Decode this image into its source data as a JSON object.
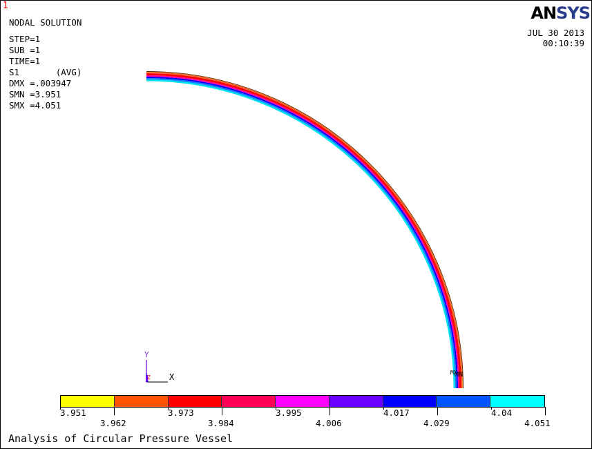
{
  "window_number": "1",
  "header": {
    "title": "NODAL SOLUTION",
    "lines": [
      "STEP=1",
      "SUB =1",
      "TIME=1",
      "S1       (AVG)",
      "DMX =.003947",
      "SMN =3.951",
      "SMX =4.051"
    ]
  },
  "logo": {
    "text_a": "AN",
    "text_b": "SYS"
  },
  "datetime": {
    "date": "JUL 30 2013",
    "time": "00:10:39"
  },
  "triad": {
    "y_label": "Y",
    "x_label": "X",
    "z_label": "Z"
  },
  "markers": {
    "mn_label": "MN",
    "mx_label": "MX"
  },
  "legend": {
    "colors": [
      "#ffff00",
      "#ff5500",
      "#ff0000",
      "#ff0055",
      "#ff00ff",
      "#6a00ff",
      "#0000ff",
      "#0055ff",
      "#00ffff"
    ],
    "labels": [
      "3.951",
      "3.962",
      "3.973",
      "3.984",
      "3.995",
      "4.006",
      "4.017",
      "4.029",
      "4.04",
      "4.051"
    ]
  },
  "caption": "Analysis of Circular Pressure Vessel"
}
